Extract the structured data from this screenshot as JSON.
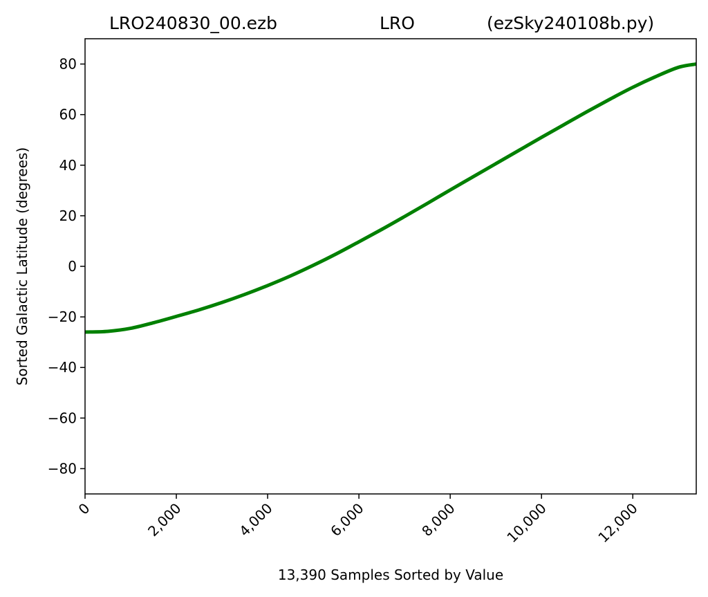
{
  "title": {
    "left": "LRO240830_00.ezb",
    "center": "LRO",
    "right": "(ezSky240108b.py)"
  },
  "chart_data": {
    "type": "line",
    "title": "LRO240830_00.ezb            LRO          (ezSky240108b.py)",
    "xlabel": "13,390 Samples Sorted by Value",
    "ylabel": "Sorted Galactic Latitude (degrees)",
    "xlim": [
      0,
      13390
    ],
    "ylim": [
      -90,
      90
    ],
    "xticks": [
      0,
      2000,
      4000,
      6000,
      8000,
      10000,
      12000
    ],
    "xtick_labels": [
      "0",
      "2,000",
      "4,000",
      "6,000",
      "8,000",
      "10,000",
      "12,000"
    ],
    "yticks": [
      80,
      60,
      40,
      20,
      0,
      -20,
      -40,
      -60,
      -80
    ],
    "ytick_labels": [
      "80",
      "60",
      "40",
      "20",
      "0",
      "−20",
      "−40",
      "−60",
      "−80"
    ],
    "grid": false,
    "line_color": "#008000",
    "series": [
      {
        "x": [
          0,
          500,
          1000,
          1500,
          2000,
          2500,
          3000,
          3500,
          4000,
          4500,
          5000,
          5500,
          6000,
          6500,
          7000,
          7500,
          8000,
          8500,
          9000,
          9500,
          10000,
          10500,
          11000,
          11500,
          12000,
          12500,
          13000,
          13390
        ],
        "y": [
          -26,
          -25.7,
          -24.5,
          -22.3,
          -19.8,
          -17.2,
          -14.3,
          -11.1,
          -7.6,
          -3.8,
          0.4,
          4.9,
          9.7,
          14.6,
          19.7,
          24.9,
          30.2,
          35.4,
          40.6,
          45.8,
          51.0,
          56.1,
          61.2,
          66.1,
          70.8,
          75.0,
          78.7,
          80.0
        ]
      }
    ]
  }
}
